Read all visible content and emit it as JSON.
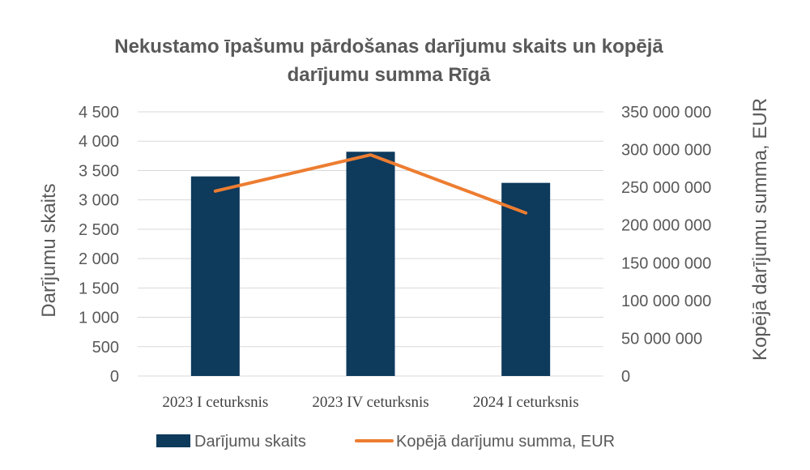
{
  "chart_data": {
    "type": "bar+line",
    "title_lines": [
      "Nekustamo īpašumu pārdošanas darījumu skaits un kopējā",
      "darījumu summa Rīgā"
    ],
    "categories": [
      "2023 I ceturksnis",
      "2023 IV ceturksnis",
      "2024 I ceturksnis"
    ],
    "series": [
      {
        "name": "Darījumu skaits",
        "type": "bar",
        "axis": "left",
        "color": "#0e3a5c",
        "values": [
          3400,
          3820,
          3290
        ]
      },
      {
        "name": "Kopējā darījumu summa, EUR",
        "type": "line",
        "axis": "right",
        "color": "#ed7d31",
        "values": [
          245000000,
          293000000,
          216000000
        ]
      }
    ],
    "y_left": {
      "label": "Darījumu skaits",
      "min": 0,
      "max": 4500,
      "ticks": [
        0,
        500,
        1000,
        1500,
        2000,
        2500,
        3000,
        3500,
        4000,
        4500
      ],
      "tick_labels": [
        "0",
        "500",
        "1 000",
        "1 500",
        "2 000",
        "2 500",
        "3 000",
        "3 500",
        "4 000",
        "4 500"
      ]
    },
    "y_right": {
      "label": "Kopējā darījumu summa, EUR",
      "min": 0,
      "max": 350000000,
      "ticks": [
        0,
        50000000,
        100000000,
        150000000,
        200000000,
        250000000,
        300000000,
        350000000
      ],
      "tick_labels": [
        "0",
        "50 000 000",
        "100 000 000",
        "150 000 000",
        "200 000 000",
        "250 000 000",
        "300 000 000",
        "350 000 000"
      ]
    },
    "legend": {
      "position": "bottom",
      "entries": [
        "Darījumu skaits",
        "Kopējā darījumu summa, EUR"
      ]
    },
    "grid": true
  }
}
